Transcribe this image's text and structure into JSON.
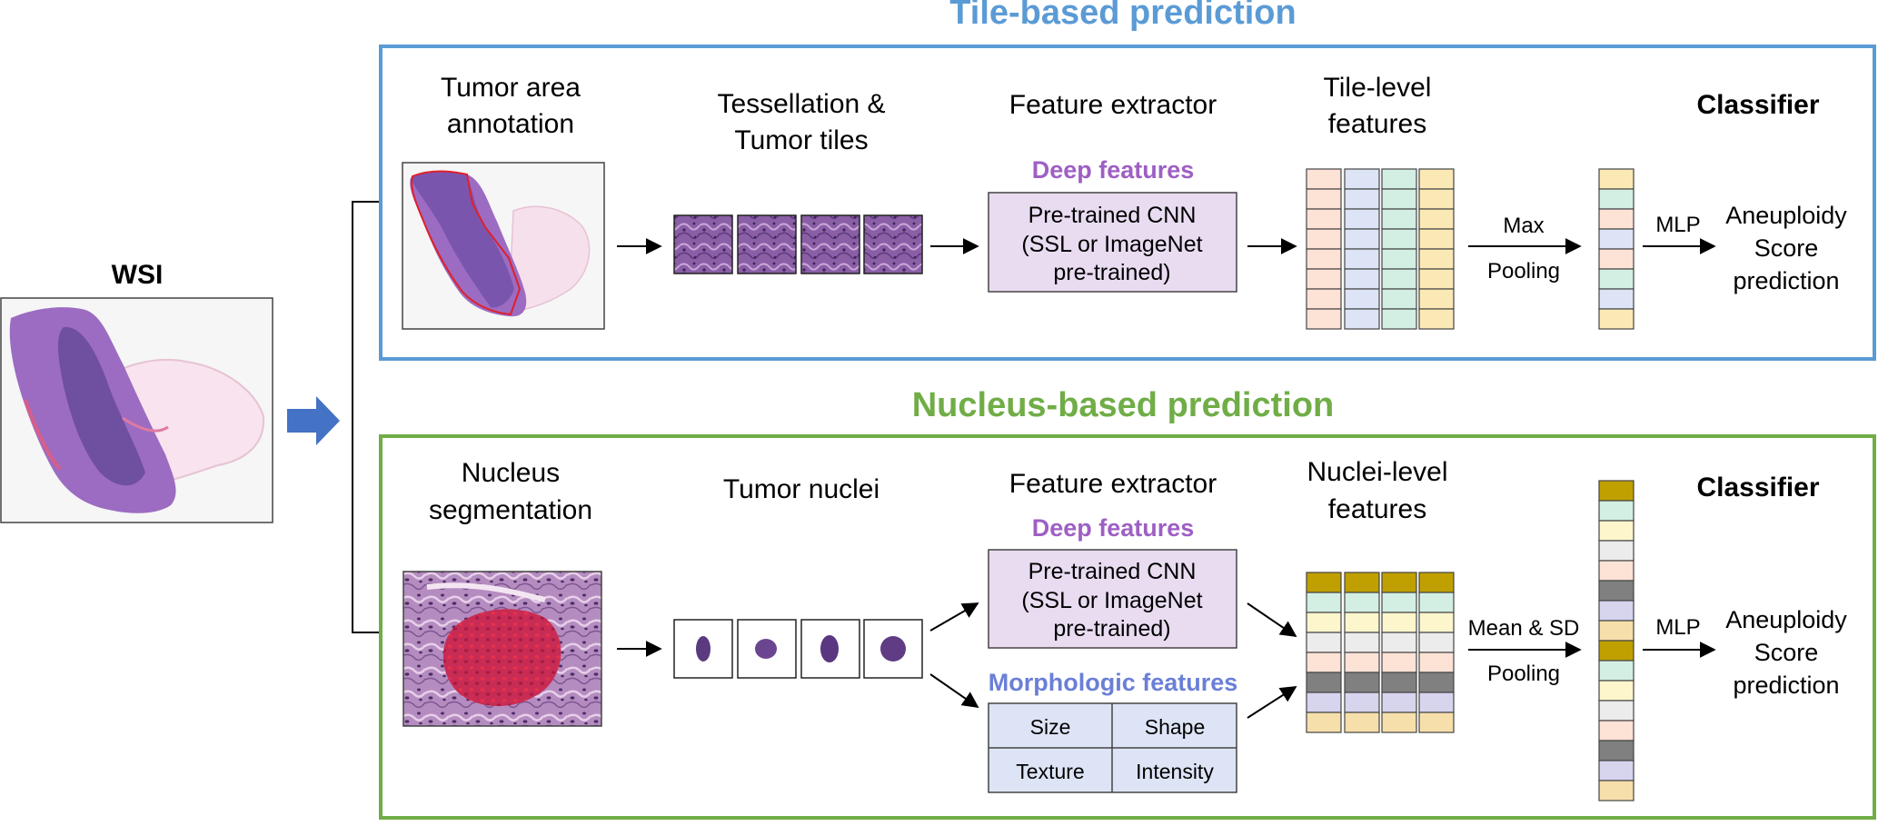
{
  "wsi": {
    "label": "WSI"
  },
  "tile": {
    "title": "Tile-based prediction",
    "step1": [
      "Tumor area",
      "annotation"
    ],
    "step2": [
      "Tessellation &",
      "Tumor tiles"
    ],
    "step3": "Feature extractor",
    "deep": "Deep features",
    "cnn": [
      "Pre-trained CNN",
      "(SSL or ImageNet",
      "pre-trained)"
    ],
    "step4": [
      "Tile-level",
      "features"
    ],
    "pool": [
      "Max",
      "Pooling"
    ],
    "mlp": "MLP",
    "classifier": "Classifier",
    "output": [
      "Aneuploidy",
      "Score",
      "prediction"
    ]
  },
  "nucleus": {
    "title": "Nucleus-based prediction",
    "step1": [
      "Nucleus",
      "segmentation"
    ],
    "step2": "Tumor nuclei",
    "step3": "Feature extractor",
    "deep": "Deep features",
    "cnn": [
      "Pre-trained CNN",
      "(SSL or ImageNet",
      "pre-trained)"
    ],
    "morph": "Morphologic features",
    "morph_cells": [
      "Size",
      "Shape",
      "Texture",
      "Intensity"
    ],
    "step4": [
      "Nuclei-level",
      "features"
    ],
    "pool": [
      "Mean & SD",
      "Pooling"
    ],
    "mlp": "MLP",
    "classifier": "Classifier",
    "output": [
      "Aneuploidy",
      "Score",
      "prediction"
    ]
  },
  "colors": {
    "tile_frame": "#5b9bd5",
    "nucleus_frame": "#70ad47",
    "deep_text": "#9e5fc4",
    "morph_text": "#6a7fd6",
    "cnn_fill": "#e9dcf1",
    "morph_fill": "#dde4f5",
    "arrow_blue": "#4472c4",
    "tile_feature_cols": [
      "#fde2d6",
      "#dde4f5",
      "#d3efe3",
      "#fbe9b5"
    ],
    "tile_pooled": [
      "#fbe9b5",
      "#d3efe3",
      "#fde2d6",
      "#dde4f5",
      "#fde2d6",
      "#d3efe3",
      "#dde4f5",
      "#fbe9b5"
    ],
    "nucleus_rows": [
      "#c0a000",
      "#d3efe3",
      "#fdf6cc",
      "#ececec",
      "#fde2d6",
      "#808080",
      "#d7d4ee",
      "#f6dfaa"
    ],
    "nucleus_pooled": [
      "#c0a000",
      "#d3efe3",
      "#fdf6cc",
      "#ececec",
      "#fde2d6",
      "#808080",
      "#d7d4ee",
      "#f6dfaa",
      "#c0a000",
      "#d3efe3",
      "#fdf6cc",
      "#ececec",
      "#fde2d6",
      "#808080",
      "#d7d4ee",
      "#f6dfaa"
    ]
  }
}
